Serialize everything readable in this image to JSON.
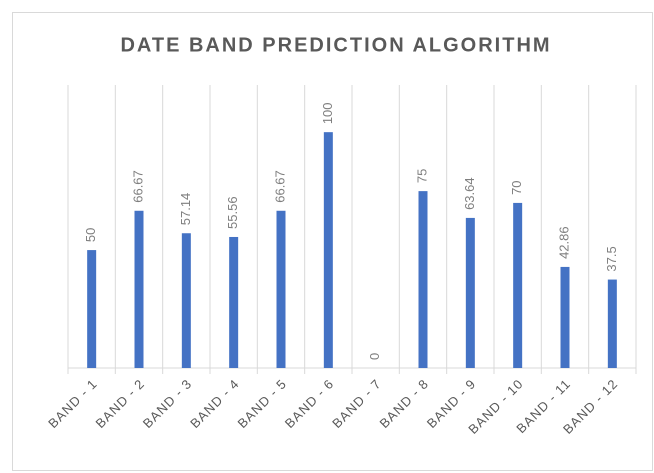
{
  "chart_data": {
    "type": "bar",
    "title": "DATE BAND PREDICTION ALGORITHM",
    "categories": [
      "BAND - 1",
      "BAND - 2",
      "BAND - 3",
      "BAND - 4",
      "BAND - 5",
      "BAND - 6",
      "BAND - 7",
      "BAND - 8",
      "BAND - 9",
      "BAND - 10",
      "BAND - 11",
      "BAND - 12"
    ],
    "values": [
      50,
      66.67,
      57.14,
      55.56,
      66.67,
      100,
      0,
      75,
      63.64,
      70,
      42.86,
      37.5
    ],
    "color": "#4472c4",
    "ylim": [
      0,
      120
    ],
    "category_grid": true
  }
}
